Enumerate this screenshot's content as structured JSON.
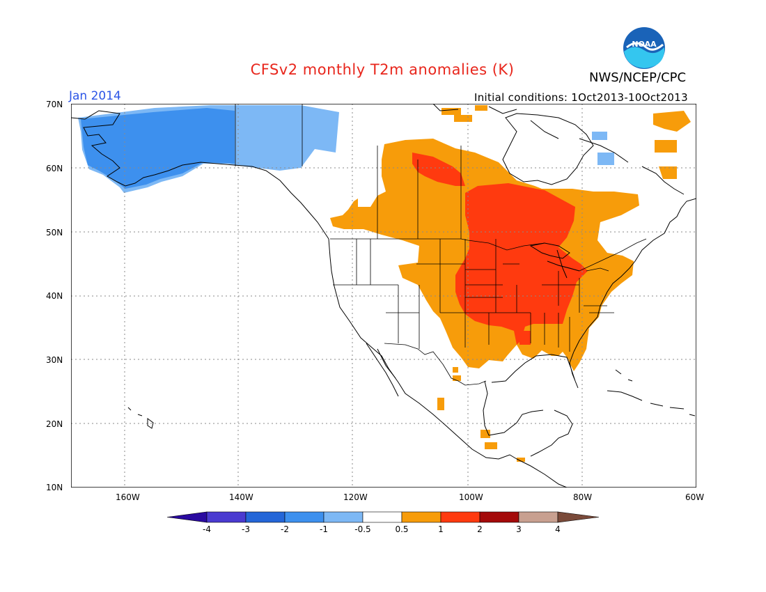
{
  "header": {
    "title": "CFSv2 monthly T2m anomalies (K)",
    "agency": "NWS/NCEP/CPC",
    "month": "Jan 2014",
    "initial_conditions": "Initial conditions: 1Oct2013-10Oct2013",
    "logo_text": "NOAA"
  },
  "map": {
    "lat_labels": [
      "70N",
      "60N",
      "50N",
      "40N",
      "30N",
      "20N",
      "10N"
    ],
    "lon_labels": [
      "160W",
      "140W",
      "120W",
      "100W",
      "80W",
      "60W"
    ],
    "lon_range": [
      -172,
      -60
    ],
    "lat_range": [
      10,
      70
    ],
    "anomaly_regions": [
      {
        "region": "Alaska",
        "anomaly_class": "-1 to -0.5",
        "color": "#7db8f5"
      },
      {
        "region": "Alaska interior",
        "anomaly_class": "-2 to -1",
        "color": "#3d90ee"
      },
      {
        "region": "Central Canada",
        "anomaly_class": "0.5 to 1",
        "color": "#f79c0a"
      },
      {
        "region": "Central US / Great Lakes",
        "anomaly_class": "1 to 2",
        "color": "#ff3a0f"
      },
      {
        "region": "Southern and Eastern US",
        "anomaly_class": "0.5 to 1",
        "color": "#f79c0a"
      },
      {
        "region": "Western US",
        "anomaly_class": "-0.5 to 0.5",
        "color": "#ffffff"
      }
    ]
  },
  "colorbar": {
    "labels": [
      "-4",
      "-3",
      "-2",
      "-1",
      "-0.5",
      "0.5",
      "1",
      "2",
      "3",
      "4"
    ],
    "colors": [
      "#2a0aa0",
      "#4a3ad0",
      "#2466d8",
      "#3d90ee",
      "#7db8f5",
      "#ffffff",
      "#f79c0a",
      "#ff3a0f",
      "#a40a0a",
      "#c8a090",
      "#7a4a3a"
    ]
  }
}
